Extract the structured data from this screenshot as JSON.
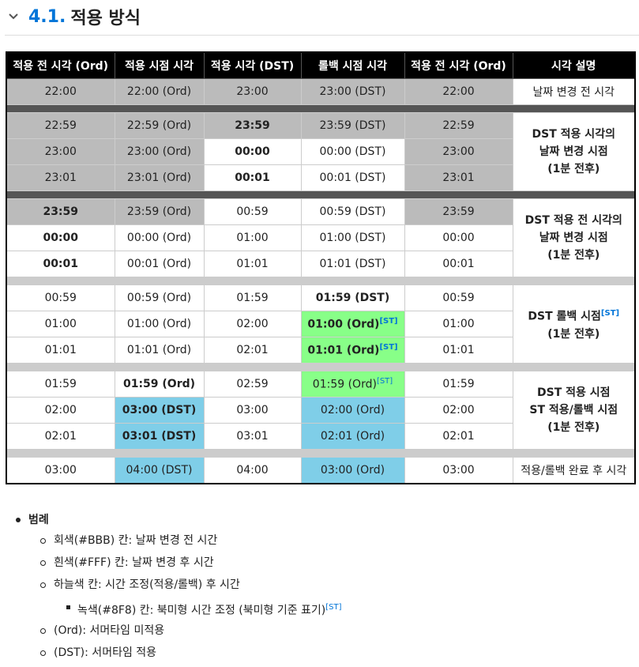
{
  "heading": {
    "number": "4.1.",
    "title": "적용 방식"
  },
  "table": {
    "headers": [
      "적용 전 시각 (Ord)",
      "적용 시점 시각",
      "적용 시각 (DST)",
      "롤백 시점 시각",
      "적용 전 시각 (Ord)",
      "시각 설명"
    ],
    "row0": [
      "22:00",
      "22:00 (Ord)",
      "23:00",
      "23:00 (DST)",
      "22:00"
    ],
    "row0_desc": "날짜 변경 전 시각",
    "g1": {
      "rows": [
        [
          "22:59",
          "22:59 (Ord)",
          "23:59",
          "23:59 (DST)",
          "22:59"
        ],
        [
          "23:00",
          "23:00 (Ord)",
          "00:00",
          "00:00 (DST)",
          "23:00"
        ],
        [
          "23:01",
          "23:01 (Ord)",
          "00:01",
          "00:01 (DST)",
          "23:01"
        ]
      ],
      "desc": [
        "DST 적용 시각의",
        "날짜 변경 시점",
        "(1분 전후)"
      ]
    },
    "g2": {
      "rows": [
        [
          "23:59",
          "23:59 (Ord)",
          "00:59",
          "00:59 (DST)",
          "23:59"
        ],
        [
          "00:00",
          "00:00 (Ord)",
          "01:00",
          "01:00 (DST)",
          "00:00"
        ],
        [
          "00:01",
          "00:01 (Ord)",
          "01:01",
          "01:01 (DST)",
          "00:01"
        ]
      ],
      "desc": [
        "DST 적용 전 시각의",
        "날짜 변경 시점",
        "(1분 전후)"
      ]
    },
    "g3": {
      "rows": [
        [
          "00:59",
          "00:59 (Ord)",
          "01:59",
          "01:59 (DST)",
          "00:59"
        ],
        [
          "01:00",
          "01:00 (Ord)",
          "02:00",
          "01:00 (Ord)",
          "01:00"
        ],
        [
          "01:01",
          "01:01 (Ord)",
          "02:01",
          "01:01 (Ord)",
          "01:01"
        ]
      ],
      "desc": [
        "DST 롤백 시점",
        "(1분 전후)"
      ]
    },
    "g4": {
      "rows": [
        [
          "01:59",
          "01:59 (Ord)",
          "02:59",
          "01:59 (Ord)",
          "01:59"
        ],
        [
          "02:00",
          "03:00 (DST)",
          "03:00",
          "02:00 (Ord)",
          "02:00"
        ],
        [
          "02:01",
          "03:01 (DST)",
          "03:01",
          "02:01 (Ord)",
          "02:01"
        ]
      ],
      "desc": [
        "DST 적용 시점",
        "ST 적용/롤백 시점",
        "(1분 전후)"
      ]
    },
    "last": [
      "03:00",
      "04:00 (DST)",
      "04:00",
      "03:00 (Ord)",
      "03:00"
    ],
    "last_desc": "적용/롤백 완료 후 시각",
    "footnote": "[ST]"
  },
  "legend": {
    "title": "범례",
    "items": [
      "회색(#BBB) 칸: 날짜 변경 전 시간",
      "흰색(#FFF) 칸: 날짜 변경 후 시간",
      "하늘색 칸: 시간 조정(적용/롤백) 후 시간",
      "녹색(#8F8) 칸: 북미형 시간 조정 (북미형 기준 표기)",
      "(Ord): 서머타임 미적용",
      "(DST): 서머타임 적용"
    ]
  },
  "colors": {
    "gray": "#BBB",
    "white": "#FFF",
    "green": "#8F8",
    "sky": "#7FCEE8",
    "link": "#0275D8"
  }
}
